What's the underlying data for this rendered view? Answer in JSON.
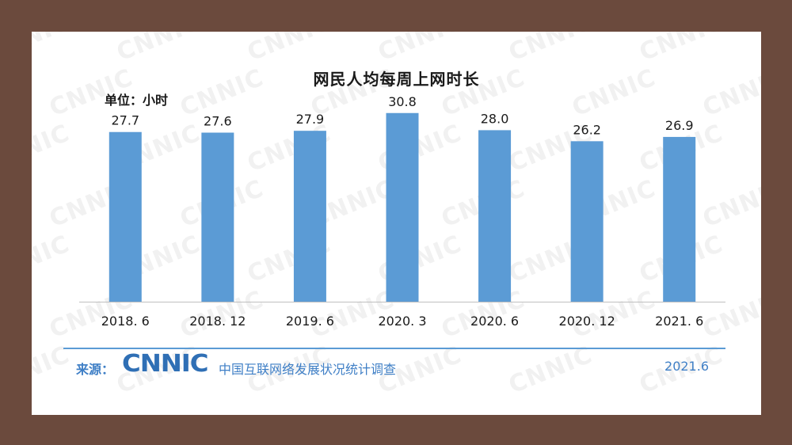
{
  "chart_data": {
    "type": "bar",
    "title": "网民人均每周上网时长",
    "unit": "单位：小时",
    "categories": [
      "2018. 6",
      "2018. 12",
      "2019. 6",
      "2020. 3",
      "2020. 6",
      "2020. 12",
      "2021. 6"
    ],
    "values": [
      27.7,
      27.6,
      27.9,
      30.8,
      28.0,
      26.2,
      26.9
    ],
    "value_labels": [
      "27.7",
      "27.6",
      "27.9",
      "30.8",
      "28.0",
      "26.2",
      "26.9"
    ],
    "ylim": [
      0,
      34
    ],
    "grid": false,
    "legend": "none",
    "bar_color": "#5b9bd5",
    "xlabel": "",
    "ylabel": ""
  },
  "watermark": {
    "text": "CNNIC"
  },
  "footer": {
    "source_label": "来源：",
    "logo_text": "CNNIC",
    "org_name": "中国互联网络发展状况统计调查",
    "date": "2021.6"
  },
  "colors": {
    "frame": "#6b4a3d",
    "bar": "#5b9bd5",
    "footer_text": "#3f7fc6",
    "rule": "#5b9bd5"
  }
}
